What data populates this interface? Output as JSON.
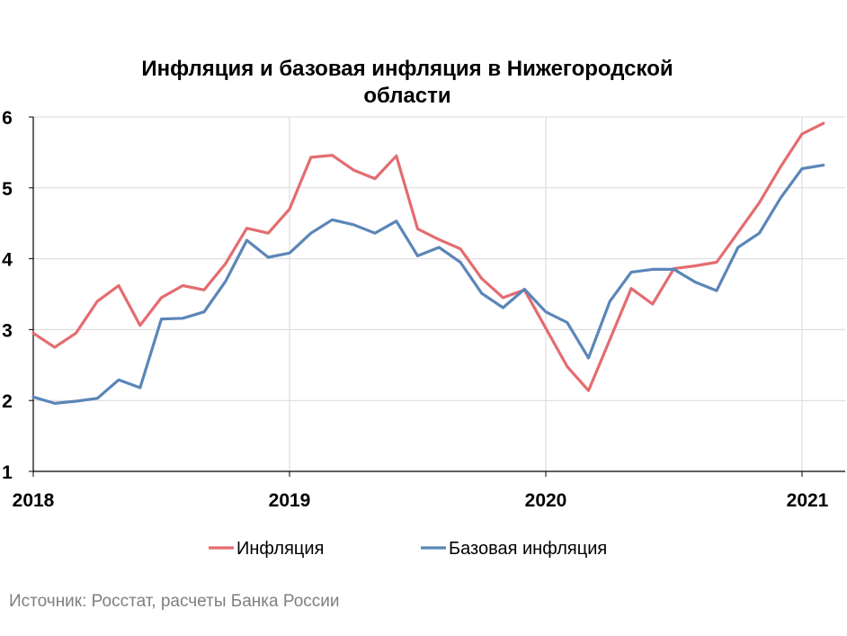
{
  "chart_data": {
    "type": "line",
    "title_lines": [
      "Инфляция и базовая инфляция в Нижегородской",
      "области"
    ],
    "y_ticks": [
      "1",
      "2",
      "3",
      "4",
      "5",
      "6"
    ],
    "ylim": [
      1,
      6
    ],
    "x_labels": [
      "2018",
      "2019",
      "2020",
      "2021"
    ],
    "x_period": "2018-01 .. 2021-02 (monthly)",
    "grid": true,
    "legend_position": "bottom",
    "series": [
      {
        "name": "Инфляция",
        "color": "#e46c70",
        "values": [
          2.95,
          2.75,
          2.95,
          3.4,
          3.62,
          3.06,
          3.45,
          3.62,
          3.56,
          3.93,
          4.43,
          4.36,
          4.7,
          5.43,
          5.46,
          5.25,
          5.13,
          5.45,
          4.42,
          4.27,
          4.14,
          3.72,
          3.45,
          3.56,
          3.02,
          2.48,
          2.14,
          2.86,
          3.58,
          3.36,
          3.86,
          3.9,
          3.95,
          4.37,
          4.79,
          5.3,
          5.76,
          5.91
        ]
      },
      {
        "name": "Базовая инфляция",
        "color": "#5b86b8",
        "values": [
          2.05,
          1.96,
          1.99,
          2.03,
          2.29,
          2.18,
          3.15,
          3.16,
          3.25,
          3.68,
          4.26,
          4.02,
          4.08,
          4.36,
          4.55,
          4.48,
          4.36,
          4.53,
          4.04,
          4.16,
          3.95,
          3.51,
          3.31,
          3.57,
          3.25,
          3.1,
          2.6,
          3.4,
          3.81,
          3.85,
          3.85,
          3.67,
          3.55,
          4.16,
          4.36,
          4.86,
          5.27,
          5.32
        ]
      }
    ]
  },
  "source": "Источник: Росстат, расчеты Банка России"
}
